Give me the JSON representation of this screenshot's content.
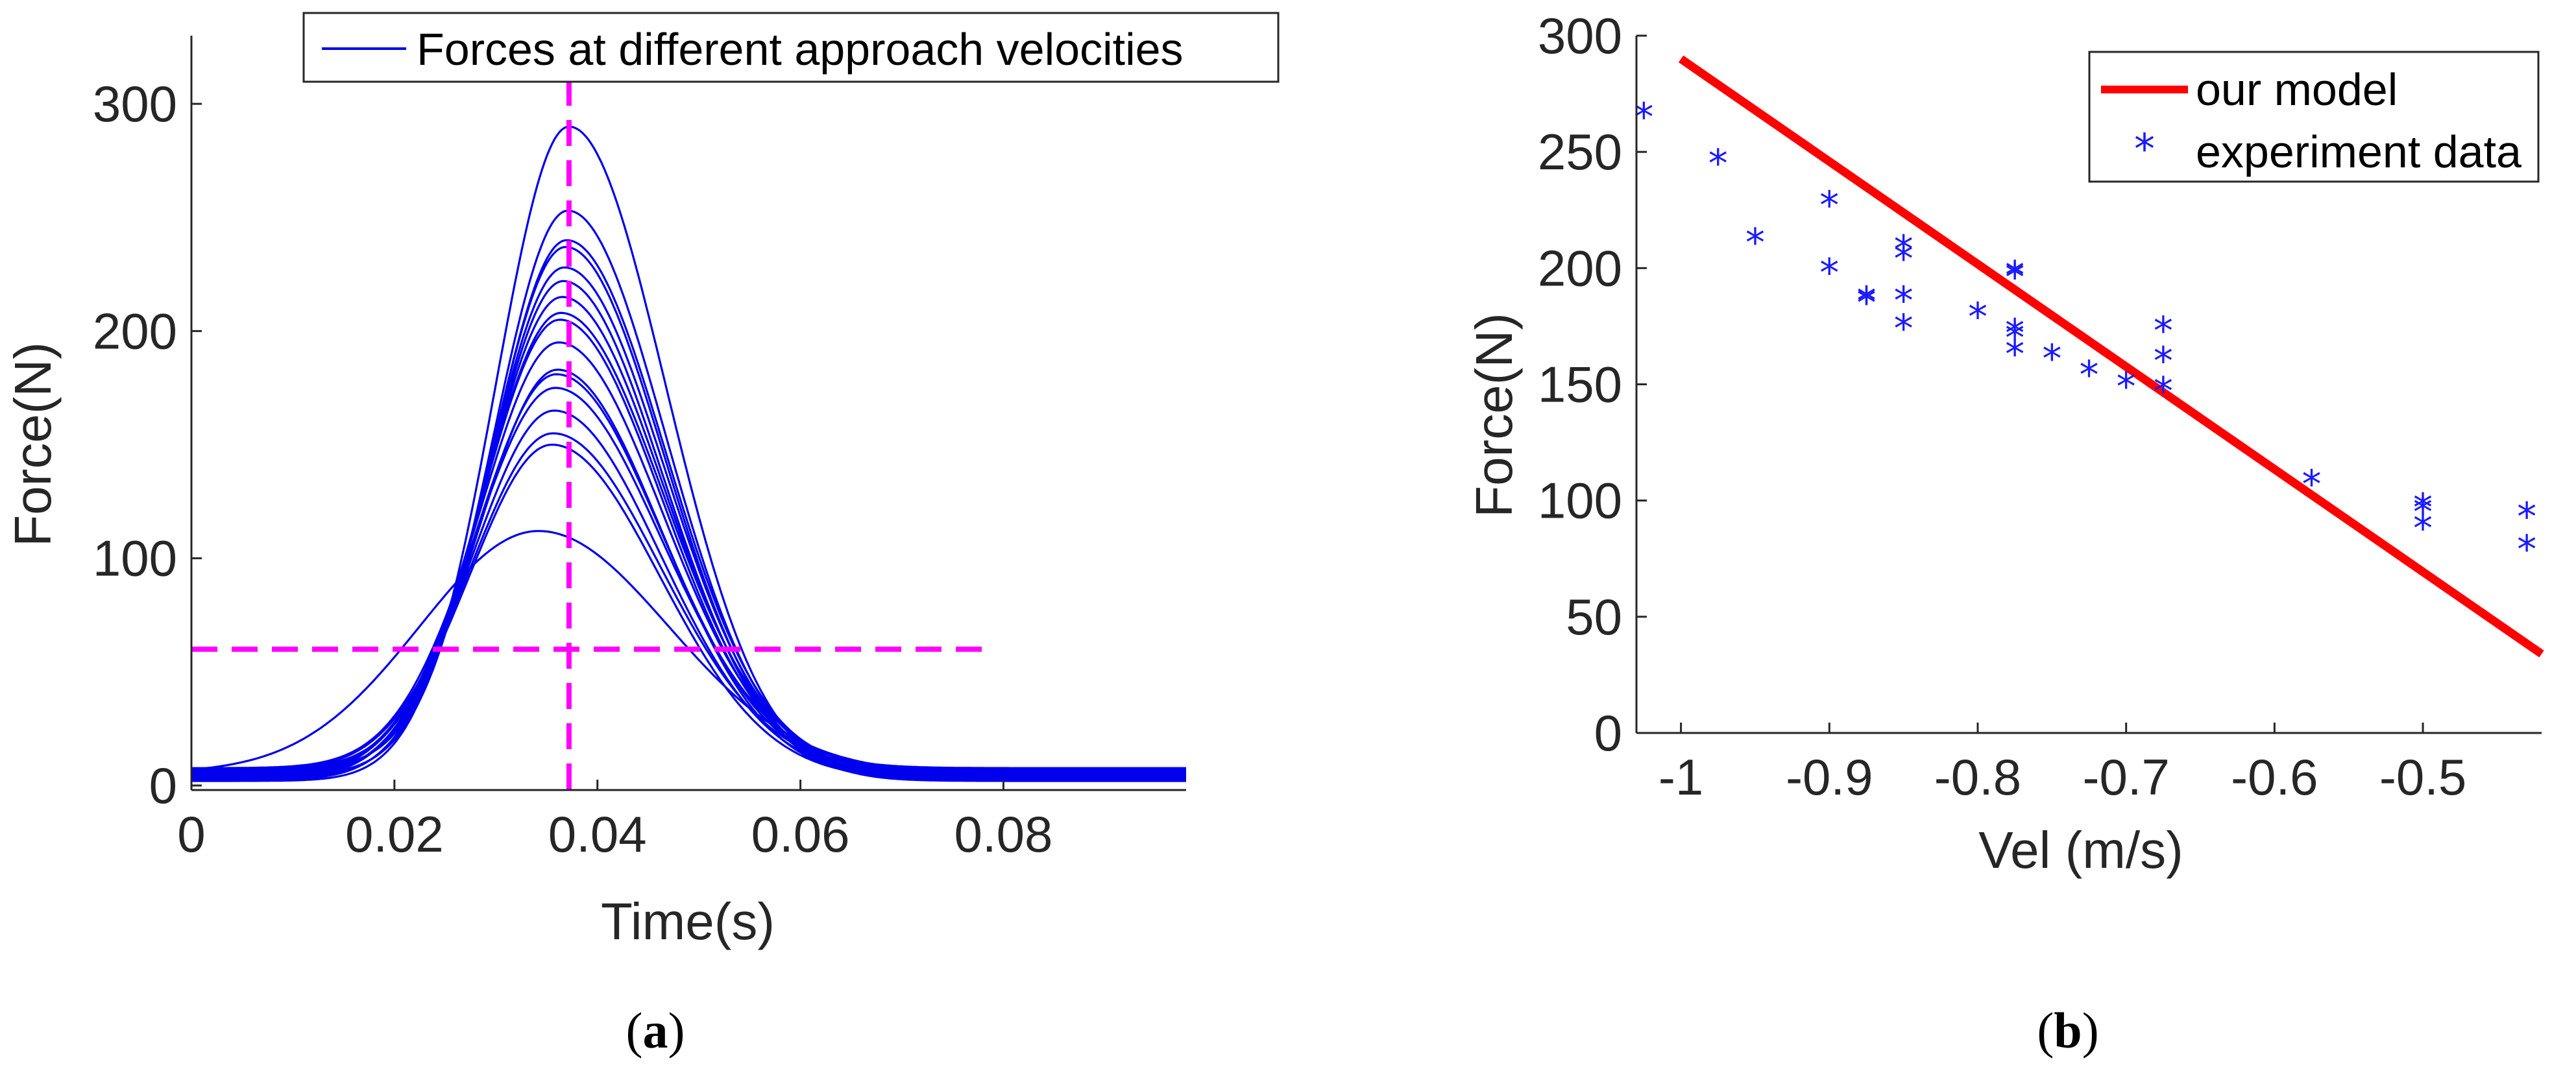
{
  "colors": {
    "curve": "#0000ee",
    "guide": "#ff00ff",
    "model": "#ff0000",
    "points": "#1a1aff",
    "axis": "#262626"
  },
  "chart_data": [
    {
      "id": "a",
      "type": "line",
      "caption": {
        "prefix": "(",
        "letter": "a",
        "suffix": ")"
      },
      "xlabel": "Time(s)",
      "ylabel": "Force(N)",
      "xlim": [
        0,
        0.098
      ],
      "ylim": [
        -2,
        330
      ],
      "xticks": [
        0,
        0.02,
        0.04,
        0.06,
        0.08
      ],
      "xtick_labels": [
        "0",
        "0.02",
        "0.04",
        "0.06",
        "0.08"
      ],
      "yticks": [
        0,
        100,
        200,
        300
      ],
      "ytick_labels": [
        "0",
        "100",
        "200",
        "300"
      ],
      "legend": {
        "label": "Forces at different approach velocities",
        "position": "top"
      },
      "guides": {
        "horizontal_force": 60,
        "horizontal_time_range": [
          0,
          0.078
        ],
        "vertical_time": 0.0372
      },
      "curve_peaks_N": [
        290,
        253,
        240,
        237,
        228,
        222,
        215,
        208,
        205,
        195,
        183,
        181,
        175,
        165,
        155,
        150,
        112
      ],
      "series_note": "17 force-time pulses, each baseline 2-8 N, rising through ~60 N near t=0.02 s and peaking near t=0.035-0.038 s"
    },
    {
      "id": "b",
      "type": "scatter",
      "caption": {
        "prefix": "(",
        "letter": "b",
        "suffix": ")"
      },
      "xlabel": "Vel  (m/s)",
      "ylabel": "Force(N)",
      "xlim": [
        -1.03,
        -0.42
      ],
      "ylim": [
        0,
        300
      ],
      "xticks": [
        -1,
        -0.9,
        -0.8,
        -0.7,
        -0.6,
        -0.5
      ],
      "xtick_labels": [
        "-1",
        "-0.9",
        "-0.8",
        "-0.7",
        "-0.6",
        "-0.5"
      ],
      "yticks": [
        0,
        50,
        100,
        150,
        200,
        250,
        300
      ],
      "ytick_labels": [
        "0",
        "50",
        "100",
        "150",
        "200",
        "250",
        "300"
      ],
      "legend": {
        "position": "top-right",
        "entries": [
          {
            "label": "our model",
            "kind": "line"
          },
          {
            "label": "experiment data",
            "kind": "marker"
          }
        ]
      },
      "model_line": {
        "x": [
          -1.0,
          -0.42
        ],
        "y": [
          290,
          34
        ]
      },
      "points": {
        "x": [
          -1.025,
          -0.975,
          -0.95,
          -0.9,
          -0.9,
          -0.875,
          -0.875,
          -0.85,
          -0.85,
          -0.85,
          -0.85,
          -0.8,
          -0.775,
          -0.775,
          -0.775,
          -0.775,
          -0.775,
          -0.75,
          -0.725,
          -0.7,
          -0.675,
          -0.675,
          -0.675,
          -0.575,
          -0.5,
          -0.5,
          -0.5,
          -0.43,
          -0.43
        ],
        "y": [
          266,
          246,
          212,
          228,
          199,
          187,
          186,
          209,
          205,
          187,
          175,
          180,
          198,
          197,
          173,
          171,
          164,
          162,
          155,
          150,
          174,
          161,
          148,
          108,
          98,
          96,
          89,
          94,
          80
        ]
      }
    }
  ]
}
